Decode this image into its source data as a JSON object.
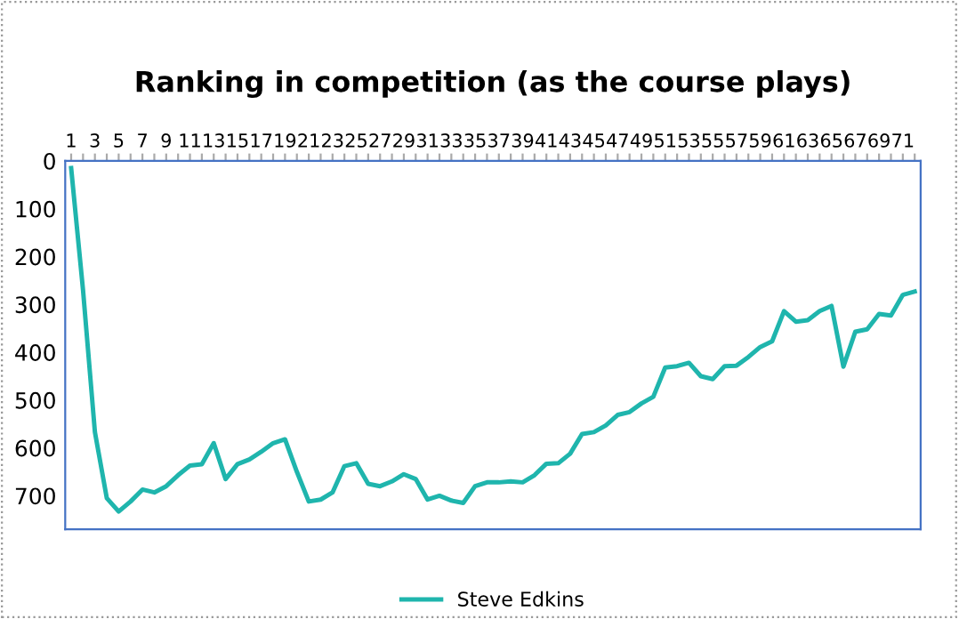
{
  "chart_data": {
    "type": "line",
    "title": "Ranking in competition (as the course plays)",
    "categories": [
      "1",
      null,
      "3",
      null,
      "5",
      null,
      "7",
      null,
      "9",
      null,
      "11",
      null,
      "13",
      null,
      "15",
      null,
      "17",
      null,
      "19",
      null,
      "21",
      null,
      "23",
      null,
      "25",
      null,
      "27",
      null,
      "29",
      null,
      "31",
      null,
      "33",
      null,
      "35",
      null,
      "37",
      null,
      "39",
      null,
      "41",
      null,
      "43",
      null,
      "45",
      null,
      "47",
      null,
      "49",
      null,
      "51",
      null,
      "53",
      null,
      "55",
      null,
      "57",
      null,
      "59",
      null,
      "61",
      null,
      "63",
      null,
      "65",
      null,
      "67",
      null,
      "69",
      null,
      "71",
      null
    ],
    "series": [
      {
        "name": "Steve Edkins",
        "color": "#1fb5ad",
        "values": [
          15,
          270,
          567,
          705,
          733,
          712,
          687,
          693,
          680,
          657,
          637,
          634,
          590,
          665,
          634,
          624,
          608,
          590,
          582,
          650,
          712,
          708,
          693,
          638,
          632,
          675,
          680,
          670,
          655,
          665,
          708,
          700,
          710,
          715,
          680,
          672,
          672,
          670,
          672,
          657,
          633,
          632,
          612,
          571,
          567,
          553,
          531,
          525,
          507,
          493,
          432,
          429,
          422,
          450,
          456,
          429,
          428,
          410,
          389,
          377,
          314,
          336,
          333,
          314,
          303,
          430,
          357,
          352,
          320,
          323,
          280,
          273
        ]
      }
    ],
    "ylim": [
      770,
      0
    ],
    "yticks": [
      0,
      100,
      200,
      300,
      400,
      500,
      600,
      700
    ],
    "grid": false,
    "legend": "bottom",
    "marker": "none",
    "line_style": "solid"
  }
}
